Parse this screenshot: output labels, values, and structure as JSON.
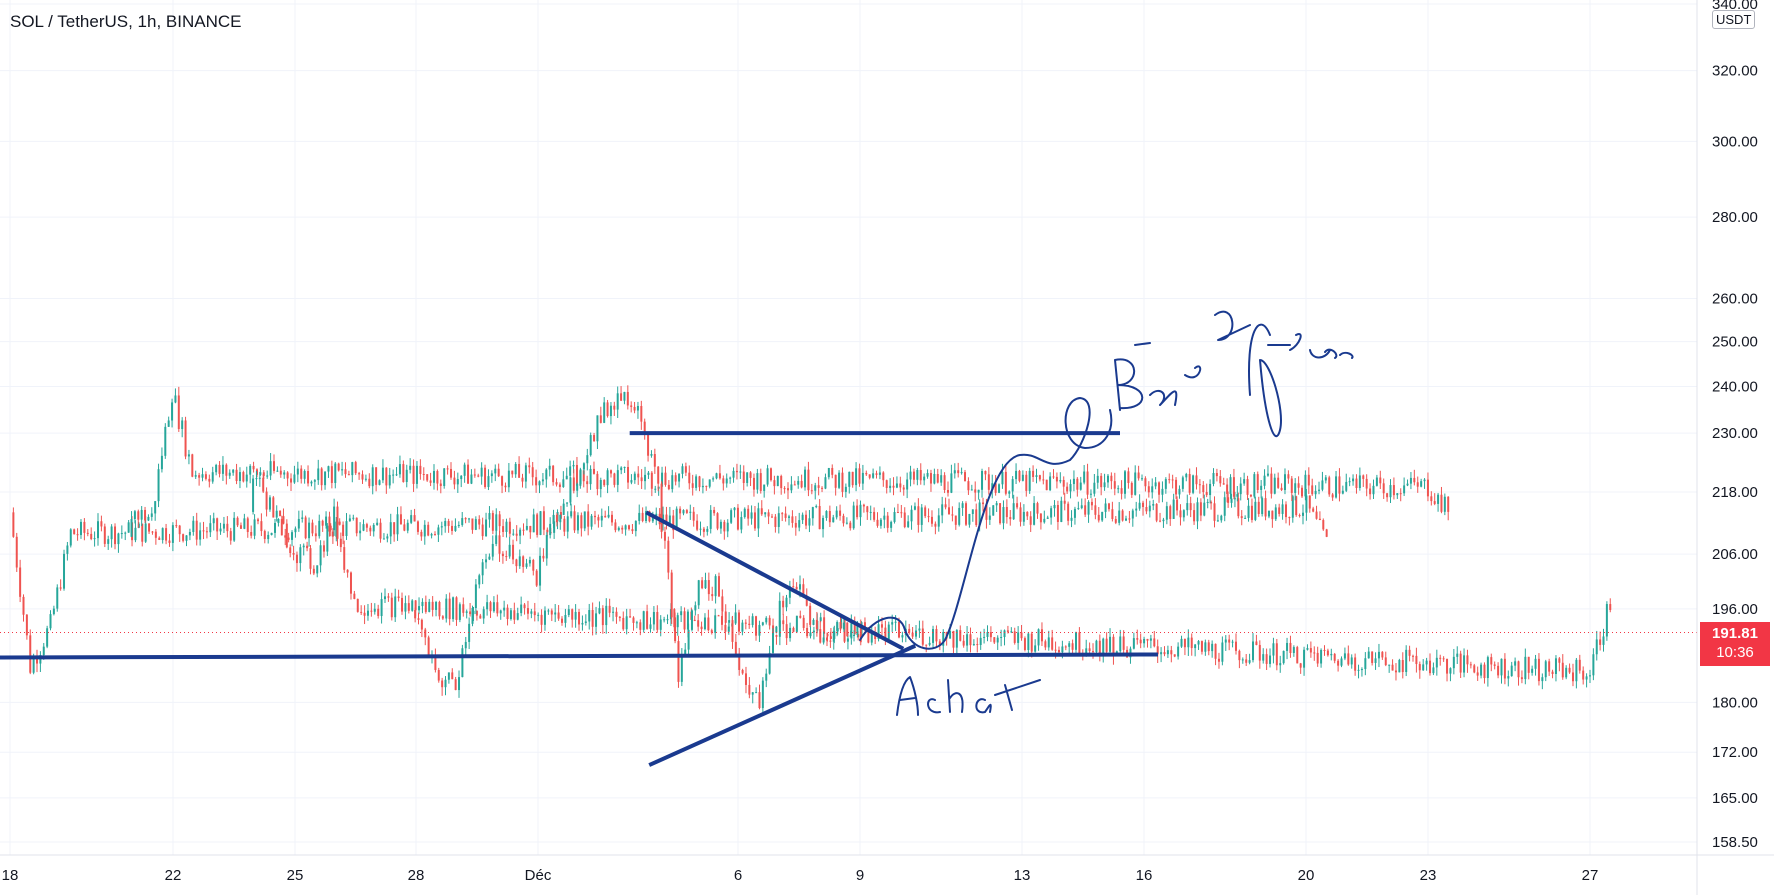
{
  "chart_data": {
    "type": "candlestick",
    "title": "SOL / TetherUS, 1h, BINANCE",
    "currency": "USDT",
    "scale": "log",
    "ylim": [
      155,
      342
    ],
    "grid": true,
    "y_ticks": [
      "340.00",
      "320.00",
      "300.00",
      "280.00",
      "260.00",
      "250.00",
      "240.00",
      "230.00",
      "218.00",
      "206.00",
      "196.00",
      "180.00",
      "172.00",
      "165.00",
      "158.50"
    ],
    "x_ticks": [
      "18",
      "22",
      "25",
      "28",
      "Déc",
      "6",
      "9",
      "13",
      "16",
      "20",
      "23",
      "27"
    ],
    "last_price": "191.81",
    "countdown": "10:36",
    "series": [
      {
        "values": [
          {
            "x": "18",
            "y": 214
          },
          {
            "x": "18",
            "y": 186
          },
          {
            "x": "19",
            "y": 193
          },
          {
            "x": "19",
            "y": 210
          },
          {
            "x": "20",
            "y": 215
          },
          {
            "x": "20",
            "y": 208
          },
          {
            "x": "21",
            "y": 214
          },
          {
            "x": "21",
            "y": 213
          },
          {
            "x": "22",
            "y": 239
          },
          {
            "x": "22",
            "y": 222
          },
          {
            "x": "23",
            "y": 219
          },
          {
            "x": "23",
            "y": 214
          },
          {
            "x": "24",
            "y": 222
          },
          {
            "x": "24",
            "y": 214
          },
          {
            "x": "25",
            "y": 207
          },
          {
            "x": "25",
            "y": 204
          },
          {
            "x": "26",
            "y": 213
          },
          {
            "x": "26",
            "y": 197
          },
          {
            "x": "27",
            "y": 185
          },
          {
            "x": "27",
            "y": 197
          },
          {
            "x": "28",
            "y": 195
          },
          {
            "x": "28",
            "y": 184
          },
          {
            "x": "29",
            "y": 183
          },
          {
            "x": "29",
            "y": 200
          },
          {
            "x": "30",
            "y": 208
          },
          {
            "x": "30",
            "y": 206
          },
          {
            "x": "Déc",
            "y": 202
          },
          {
            "x": "Déc",
            "y": 214
          },
          {
            "x": "2",
            "y": 222
          },
          {
            "x": "2",
            "y": 232
          },
          {
            "x": "3",
            "y": 238
          },
          {
            "x": "3",
            "y": 237
          },
          {
            "x": "4",
            "y": 218
          },
          {
            "x": "4",
            "y": 184
          },
          {
            "x": "5",
            "y": 200
          },
          {
            "x": "5",
            "y": 200
          },
          {
            "x": "6",
            "y": 186
          },
          {
            "x": "6",
            "y": 179
          },
          {
            "x": "7",
            "y": 197
          },
          {
            "x": "7",
            "y": 200
          },
          {
            "x": "8",
            "y": 190
          },
          {
            "x": "8",
            "y": 193
          },
          {
            "x": "9",
            "y": 191.81
          }
        ]
      }
    ],
    "annotations": {
      "resistance_line": 230,
      "support_line": 187.5,
      "triangle_upper": [
        {
          "x": "4",
          "y": 214
        },
        {
          "x": "10",
          "y": 189
        }
      ],
      "triangle_lower": [
        {
          "x": "4",
          "y": 170
        },
        {
          "x": "10",
          "y": 189
        }
      ],
      "handwritten": [
        "Bénéfices",
        "Achat"
      ]
    }
  }
}
